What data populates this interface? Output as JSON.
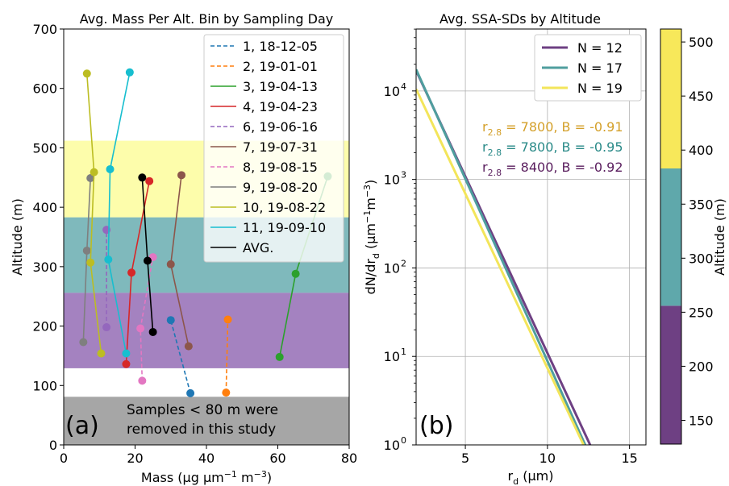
{
  "chart_data": [
    {
      "type": "line",
      "title": "Avg. Mass Per Alt. Bin by Sampling Day",
      "xlabel_main": "Mass (µg µm",
      "xlabel_sup1": "−1",
      "xlabel_mid": " m",
      "xlabel_sup2": "−3",
      "xlabel_end": ")",
      "ylabel": "Altitude (m)",
      "xlim": [
        0,
        80
      ],
      "ylim": [
        0,
        700
      ],
      "xticks": [
        0,
        20,
        40,
        60,
        80
      ],
      "yticks": [
        0,
        100,
        200,
        300,
        400,
        500,
        600,
        700
      ],
      "panel_label": "(a)",
      "bands": [
        {
          "y0": 383,
          "y1": 512,
          "color": "#fdfd96"
        },
        {
          "y0": 256,
          "y1": 383,
          "color": "#5fa8ab"
        },
        {
          "y0": 129,
          "y1": 256,
          "color": "#8d63b0"
        },
        {
          "y0": 0,
          "y1": 81,
          "color": "#a6a6a6"
        }
      ],
      "note_line1": "Samples < 80 m were",
      "note_line2": "removed in this study",
      "series": [
        {
          "name": "1, 18-12-05",
          "color": "#1f77b4",
          "dash": true,
          "x": [
            35.5,
            30,
            null
          ],
          "y": [
            87,
            210,
            null
          ]
        },
        {
          "name": "2, 19-01-01",
          "color": "#ff7f0e",
          "dash": true,
          "x": [
            45.5,
            46
          ],
          "y": [
            88,
            211
          ]
        },
        {
          "name": "3, 19-04-13",
          "color": "#2ca02c",
          "dash": false,
          "x": [
            60.5,
            65,
            74
          ],
          "y": [
            148,
            288,
            452
          ]
        },
        {
          "name": "4, 19-04-23",
          "color": "#d62728",
          "dash": false,
          "x": [
            17.5,
            19,
            24
          ],
          "y": [
            136,
            290,
            444
          ]
        },
        {
          "name": "6, 19-06-16",
          "color": "#9467bd",
          "dash": true,
          "x": [
            12,
            12
          ],
          "y": [
            198,
            362
          ]
        },
        {
          "name": "7, 19-07-31",
          "color": "#8c564b",
          "dash": false,
          "x": [
            35,
            30,
            33
          ],
          "y": [
            166,
            304,
            454
          ]
        },
        {
          "name": "8, 19-08-15",
          "color": "#e377c2",
          "dash": true,
          "x": [
            22,
            21.5,
            25
          ],
          "y": [
            108,
            196,
            316
          ]
        },
        {
          "name": "9, 19-08-20",
          "color": "#7f7f7f",
          "dash": false,
          "x": [
            5.5,
            6.5,
            7.5
          ],
          "y": [
            173,
            327,
            449
          ]
        },
        {
          "name": "10, 19-08-22",
          "color": "#bcbd22",
          "dash": false,
          "x": [
            10.5,
            7.5,
            8.5,
            6.5
          ],
          "y": [
            154,
            307,
            459,
            625
          ]
        },
        {
          "name": "11, 19-09-10",
          "color": "#17becf",
          "dash": false,
          "x": [
            17.5,
            12.5,
            13,
            18.5
          ],
          "y": [
            154,
            312,
            464,
            627
          ]
        },
        {
          "name": "AVG.",
          "color": "#000000",
          "dash": false,
          "x": [
            25,
            23.5,
            22
          ],
          "y": [
            190,
            310,
            450
          ]
        }
      ]
    },
    {
      "type": "line",
      "title": "Avg. SSA-SDs by Altitude",
      "xlabel_main": "r",
      "xlabel_sub": "d",
      "xlabel_end": " (µm)",
      "ylabel_pre": "dN/dr",
      "ylabel_sub": "d",
      "ylabel_mid": " (µm",
      "ylabel_sup1": "−1",
      "ylabel_mid2": "m",
      "ylabel_sup2": "−3",
      "ylabel_end": ")",
      "xlim": [
        2,
        16
      ],
      "ylim_log10": [
        0,
        4.7
      ],
      "y_scale": "log",
      "xticks": [
        5,
        10,
        15
      ],
      "yticks_exp": [
        0,
        1,
        2,
        3,
        4
      ],
      "panel_label": "(b)",
      "series": [
        {
          "name": "N = 12",
          "color": "#6e4083",
          "r28": "7800",
          "B": "-0.91",
          "ann_color": "#5a1e5e",
          "x": [
            2,
            12.6
          ],
          "y": [
            17000,
            1
          ]
        },
        {
          "name": "N = 17",
          "color": "#4f9e9e",
          "r28": "7800",
          "B": "-0.95",
          "ann_color": "#2a8a88",
          "x": [
            2,
            12.3
          ],
          "y": [
            17500,
            1
          ]
        },
        {
          "name": "N = 19",
          "color": "#f3e55a",
          "r28": "8400",
          "B": "-0.92",
          "ann_color": "#d4a02a",
          "x": [
            2,
            12.2
          ],
          "y": [
            10500,
            1
          ]
        }
      ],
      "annotations": [
        {
          "text_pre": "r",
          "text_sub": "2.8",
          "text_post": " = 7800, B = -0.91",
          "color": "#d4a02a"
        },
        {
          "text_pre": "r",
          "text_sub": "2.8",
          "text_post": " = 7800, B = -0.95",
          "color": "#2a8a88"
        },
        {
          "text_pre": "r",
          "text_sub": "2.8",
          "text_post": " = 8400, B = -0.92",
          "color": "#5a1e5e"
        }
      ]
    },
    {
      "type": "heatmap",
      "colorbar_label": "Altitude (m)",
      "ylim": [
        128,
        512
      ],
      "ticks": [
        150,
        200,
        250,
        300,
        350,
        400,
        450,
        500
      ],
      "segments": [
        {
          "y0": 128,
          "y1": 256,
          "color": "#6e4083"
        },
        {
          "y0": 256,
          "y1": 383,
          "color": "#5fa8ab"
        },
        {
          "y0": 383,
          "y1": 512,
          "color": "#f7e85a"
        }
      ]
    }
  ]
}
